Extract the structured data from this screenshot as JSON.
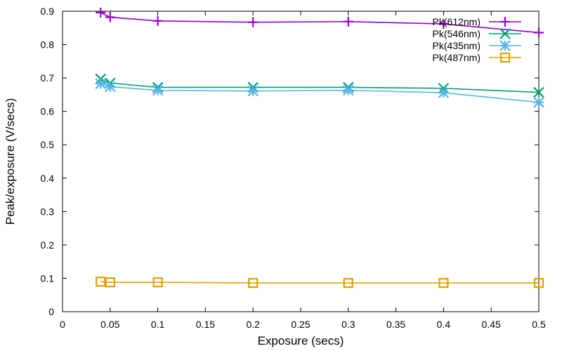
{
  "chart_data": {
    "type": "line",
    "title": "",
    "xlabel": "Exposure (secs)",
    "ylabel": "Peak/exposure (V/secs)",
    "xlim": [
      0,
      0.5
    ],
    "ylim": [
      0,
      0.9
    ],
    "x_ticks": [
      "0",
      "0.05",
      "0.1",
      "0.15",
      "0.2",
      "0.25",
      "0.3",
      "0.35",
      "0.4",
      "0.45",
      "0.5"
    ],
    "y_ticks": [
      "0",
      "0.1",
      "0.2",
      "0.3",
      "0.4",
      "0.5",
      "0.6",
      "0.7",
      "0.8",
      "0.9"
    ],
    "grid": false,
    "legend_position": "top-right",
    "x": [
      0.04,
      0.05,
      0.1,
      0.2,
      0.3,
      0.4,
      0.5
    ],
    "series": [
      {
        "name": "Pk(612nm)",
        "color": "#9400d3",
        "marker": "plus",
        "values": [
          0.896,
          0.882,
          0.871,
          0.867,
          0.869,
          0.862,
          0.836
        ]
      },
      {
        "name": "Pk(546nm)",
        "color": "#009e73",
        "marker": "cross",
        "values": [
          0.697,
          0.685,
          0.672,
          0.672,
          0.672,
          0.669,
          0.657
        ]
      },
      {
        "name": "Pk(435nm)",
        "color": "#56b4e9",
        "marker": "star",
        "values": [
          0.683,
          0.674,
          0.663,
          0.661,
          0.663,
          0.656,
          0.627
        ]
      },
      {
        "name": "Pk(487nm)",
        "color": "#e69f00",
        "marker": "square",
        "values": [
          0.09,
          0.088,
          0.088,
          0.086,
          0.086,
          0.086,
          0.086
        ]
      }
    ]
  }
}
